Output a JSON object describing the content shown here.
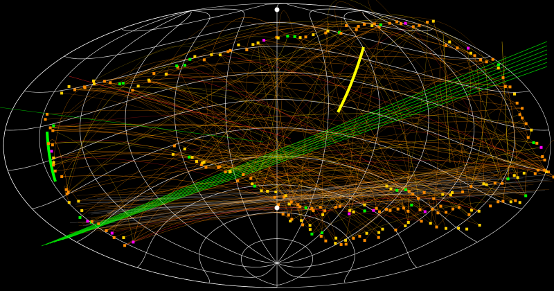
{
  "view": {
    "projection": "hammer-aitoff",
    "grid_meridians": 12,
    "grid_parallels": 11,
    "show_grid": true
  },
  "colors": {
    "background": "#000000",
    "grid": "#ffffff",
    "connection_primary": "#ff8c00",
    "connection_secondary": "#ffd000",
    "connection_tertiary": "#00ff00",
    "connection_rare": "#ff2020",
    "node_primary": "#ff8c00",
    "node_secondary": "#ffd000",
    "node_tertiary": "#00ff00",
    "node_rare": "#ff00ff",
    "highlight_arc": "#ffff00"
  },
  "icons": {
    "pole": "bright-node-icon"
  }
}
